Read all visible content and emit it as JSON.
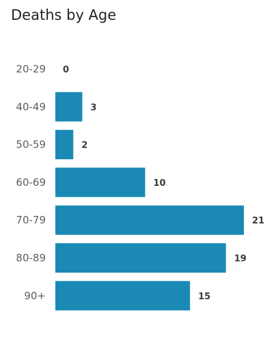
{
  "chart_data": {
    "type": "bar",
    "orientation": "horizontal",
    "title": "Deaths by Age",
    "categories": [
      "20-29",
      "40-49",
      "50-59",
      "60-69",
      "70-79",
      "80-89",
      "90+"
    ],
    "values": [
      0,
      3,
      2,
      10,
      21,
      19,
      15
    ],
    "data_labels": true,
    "grid": false,
    "legend": "none",
    "bar_color": "#1a8ab5",
    "xlim": [
      0,
      21
    ]
  }
}
